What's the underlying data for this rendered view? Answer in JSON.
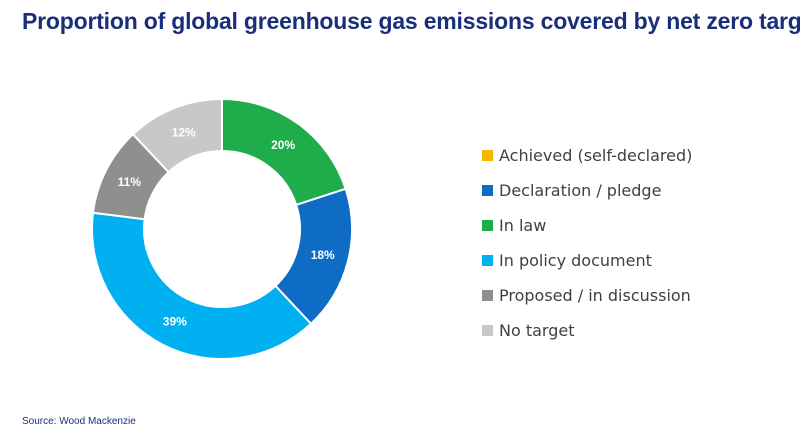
{
  "title": "Proportion of global greenhouse gas emissions covered by net zero targets",
  "source": "Source: Wood Mackenzie",
  "chart_data": {
    "type": "pie",
    "subtype": "donut",
    "legend_position": "right",
    "slices": [
      {
        "name": "Achieved (self-declared)",
        "value": 0,
        "label": "",
        "color": "#f5b800"
      },
      {
        "name": "Declaration / pledge",
        "value": 18,
        "label": "18%",
        "color": "#0e6cc4"
      },
      {
        "name": "In law",
        "value": 20,
        "label": "20%",
        "color": "#1fac4b"
      },
      {
        "name": "In policy document",
        "value": 39,
        "label": "39%",
        "color": "#00b0f0"
      },
      {
        "name": "Proposed / in discussion",
        "value": 11,
        "label": "11%",
        "color": "#8f8f8f"
      },
      {
        "name": "No target",
        "value": 12,
        "label": "12%",
        "color": "#c8c8c8"
      }
    ],
    "draw_order": [
      "In law",
      "Declaration / pledge",
      "In policy document",
      "Proposed / in discussion",
      "No target"
    ]
  }
}
